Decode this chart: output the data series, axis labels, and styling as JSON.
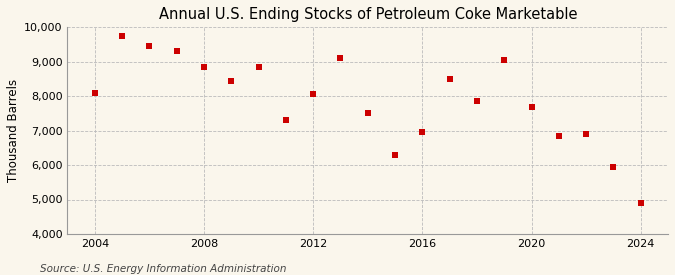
{
  "title": "Annual U.S. Ending Stocks of Petroleum Coke Marketable",
  "ylabel": "Thousand Barrels",
  "source": "Source: U.S. Energy Information Administration",
  "years": [
    2004,
    2005,
    2006,
    2007,
    2008,
    2009,
    2010,
    2011,
    2012,
    2013,
    2014,
    2015,
    2016,
    2017,
    2018,
    2019,
    2020,
    2021,
    2022,
    2023,
    2024
  ],
  "values": [
    8100,
    9750,
    9450,
    9300,
    8850,
    8450,
    8850,
    7300,
    8050,
    9100,
    7500,
    6300,
    6950,
    8500,
    7850,
    9050,
    7700,
    6850,
    6900,
    5950,
    4900
  ],
  "marker_color": "#CC0000",
  "marker": "s",
  "marker_size": 18,
  "ylim": [
    4000,
    10000
  ],
  "yticks": [
    4000,
    5000,
    6000,
    7000,
    8000,
    9000,
    10000
  ],
  "xlim": [
    2003.0,
    2025.0
  ],
  "xticks": [
    2004,
    2008,
    2012,
    2016,
    2020,
    2024
  ],
  "background_color": "#FAF6EC",
  "grid_color": "#BBBBBB",
  "title_fontsize": 10.5,
  "label_fontsize": 8.5,
  "tick_fontsize": 8,
  "source_fontsize": 7.5
}
